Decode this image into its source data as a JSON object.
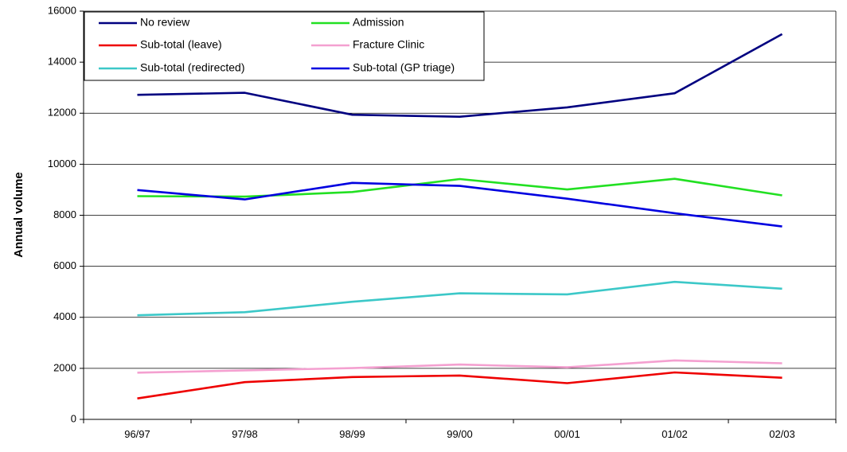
{
  "chart_data": {
    "type": "line",
    "title": "",
    "xlabel": "",
    "ylabel": "Annual volume",
    "categories": [
      "96/97",
      "97/98",
      "98/99",
      "99/00",
      "00/01",
      "01/02",
      "02/03"
    ],
    "ylim": [
      0,
      16000
    ],
    "yticks": [
      0,
      2000,
      4000,
      6000,
      8000,
      10000,
      12000,
      14000,
      16000
    ],
    "grid": true,
    "legend_position": "top-left",
    "series": [
      {
        "name": "No review",
        "color": "#000080",
        "values": [
          12720,
          12800,
          11940,
          11860,
          12230,
          12780,
          15100
        ]
      },
      {
        "name": "Admission",
        "color": "#22e022",
        "values": [
          8750,
          8730,
          8910,
          9420,
          9010,
          9430,
          8780
        ]
      },
      {
        "name": "Sub-total (leave)",
        "color": "#ee0000",
        "values": [
          820,
          1460,
          1660,
          1720,
          1420,
          1840,
          1630
        ]
      },
      {
        "name": "Fracture Clinic",
        "color": "#f4a0d0",
        "values": [
          1830,
          1920,
          2010,
          2150,
          2040,
          2310,
          2200
        ]
      },
      {
        "name": "Sub-total (redirected)",
        "color": "#3cc8c8",
        "values": [
          4080,
          4200,
          4610,
          4940,
          4900,
          5390,
          5120
        ]
      },
      {
        "name": "Sub-total (GP triage)",
        "color": "#0000e0",
        "values": [
          8990,
          8620,
          9270,
          9150,
          8650,
          8080,
          7560
        ]
      }
    ]
  }
}
